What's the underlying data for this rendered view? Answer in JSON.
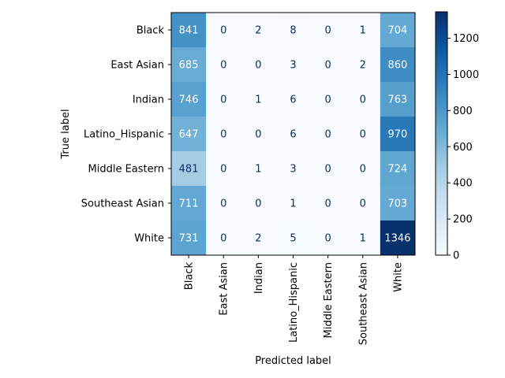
{
  "chart_data": {
    "type": "heatmap",
    "title": "",
    "xlabel": "Predicted label",
    "ylabel": "True label",
    "x_categories": [
      "Black",
      "East Asian",
      "Indian",
      "Latino_Hispanic",
      "Middle Eastern",
      "Southeast Asian",
      "White"
    ],
    "y_categories": [
      "Black",
      "East Asian",
      "Indian",
      "Latino_Hispanic",
      "Middle Eastern",
      "Southeast Asian",
      "White"
    ],
    "values": [
      [
        841,
        0,
        2,
        8,
        0,
        1,
        704
      ],
      [
        685,
        0,
        0,
        3,
        0,
        2,
        860
      ],
      [
        746,
        0,
        1,
        6,
        0,
        0,
        763
      ],
      [
        647,
        0,
        0,
        6,
        0,
        0,
        970
      ],
      [
        481,
        0,
        1,
        3,
        0,
        0,
        724
      ],
      [
        711,
        0,
        0,
        1,
        0,
        0,
        703
      ],
      [
        731,
        0,
        2,
        5,
        0,
        1,
        1346
      ]
    ],
    "colormap": "Blues",
    "color_range": [
      0,
      1346
    ],
    "colorbar_ticks": [
      0,
      200,
      400,
      600,
      800,
      1000,
      1200
    ],
    "colorbar_labels": [
      "0",
      "200",
      "400",
      "600",
      "800",
      "1000",
      "1200"
    ]
  }
}
